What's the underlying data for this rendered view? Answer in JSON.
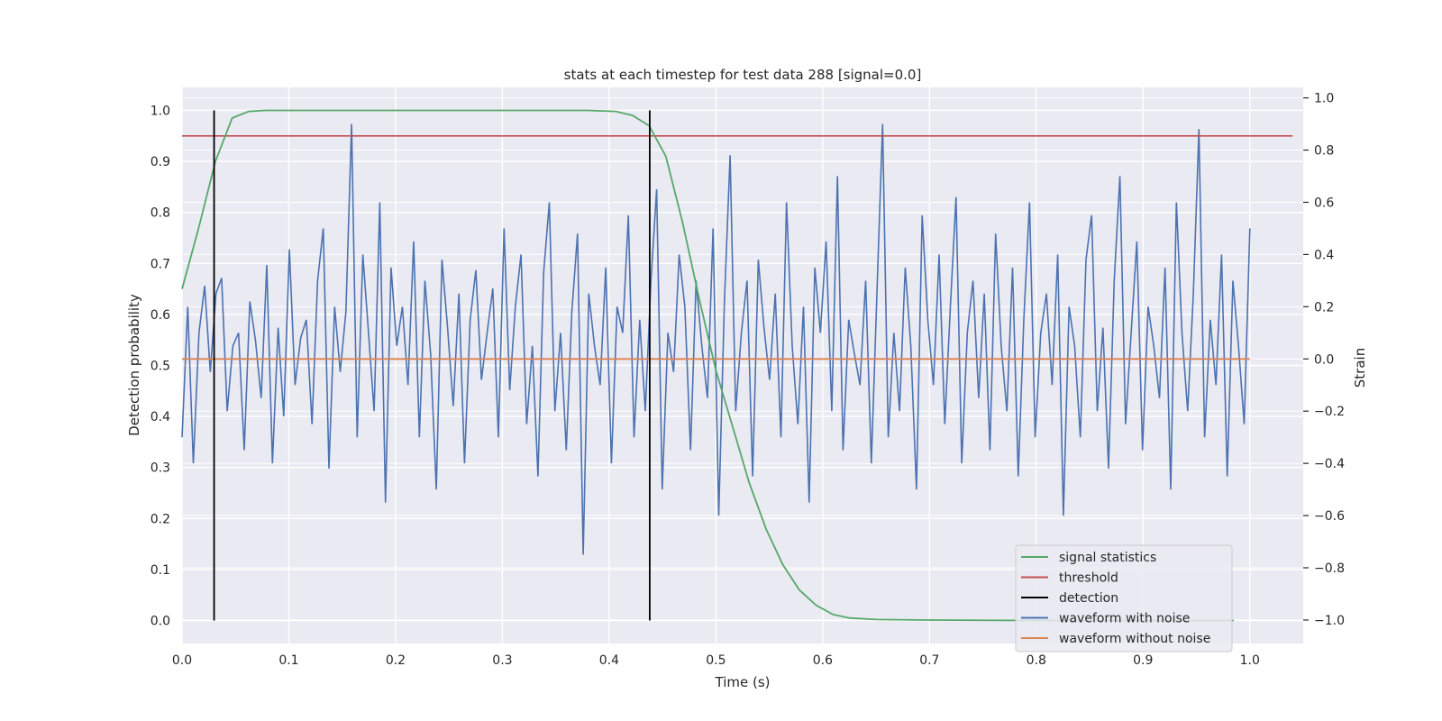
{
  "chart_data": {
    "type": "line",
    "title": "stats at each timestep for test data 288 [signal=0.0]",
    "xlabel": "Time (s)",
    "ylabel": "Detection probability",
    "y2label": "Strain",
    "xlim": [
      0.0,
      1.05
    ],
    "ylim": [
      -0.045,
      1.045
    ],
    "y2lim": [
      -1.09,
      1.04
    ],
    "xticks": [
      0.0,
      0.1,
      0.2,
      0.3,
      0.4,
      0.5,
      0.6,
      0.7,
      0.8,
      0.9,
      1.0
    ],
    "xtick_labels": [
      "0.0",
      "0.1",
      "0.2",
      "0.3",
      "0.4",
      "0.5",
      "0.6",
      "0.7",
      "0.8",
      "0.9",
      "1.0"
    ],
    "yticks": [
      0.0,
      0.1,
      0.2,
      0.3,
      0.4,
      0.5,
      0.6,
      0.7,
      0.8,
      0.9,
      1.0
    ],
    "ytick_labels": [
      "0.0",
      "0.1",
      "0.2",
      "0.3",
      "0.4",
      "0.5",
      "0.6",
      "0.7",
      "0.8",
      "0.9",
      "1.0"
    ],
    "y2ticks": [
      -1.0,
      -0.8,
      -0.6,
      -0.4,
      -0.2,
      0.0,
      0.2,
      0.4,
      0.6,
      0.8,
      1.0
    ],
    "y2tick_labels": [
      "−1.0",
      "−0.8",
      "−0.6",
      "−0.4",
      "−0.2",
      "0.0",
      "0.2",
      "0.4",
      "0.6",
      "0.8",
      "1.0"
    ],
    "grid": true,
    "legend_position": "lower-right",
    "colors": {
      "signal_statistics": "#55a868",
      "threshold": "#c44e52",
      "detection": "#000000",
      "waveform_with_noise": "#4c72b0",
      "waveform_without_noise": "#dd8452",
      "background": "#eaeaf2",
      "grid": "#ffffff"
    },
    "series": [
      {
        "name": "signal statistics",
        "axis": "left",
        "x": [
          0.0,
          0.0156,
          0.0312,
          0.0469,
          0.0625,
          0.0781,
          0.0938,
          0.1094,
          0.125,
          0.2,
          0.3,
          0.38,
          0.4062,
          0.4219,
          0.4375,
          0.4531,
          0.4688,
          0.4844,
          0.5,
          0.5156,
          0.5312,
          0.5469,
          0.5625,
          0.5781,
          0.5938,
          0.6094,
          0.625,
          0.65,
          0.7,
          0.8,
          0.9,
          0.985
        ],
        "y": [
          0.65,
          0.77,
          0.9,
          0.985,
          0.998,
          1.0,
          1.0,
          1.0,
          1.0,
          1.0,
          1.0,
          1.0,
          0.998,
          0.99,
          0.97,
          0.91,
          0.78,
          0.63,
          0.49,
          0.38,
          0.27,
          0.18,
          0.11,
          0.06,
          0.03,
          0.012,
          0.005,
          0.002,
          0.001,
          0.0,
          0.0,
          0.0
        ]
      },
      {
        "name": "threshold",
        "axis": "left",
        "x": [
          0.0,
          1.04
        ],
        "y": [
          0.95,
          0.95
        ]
      },
      {
        "name": "detection",
        "axis": "left",
        "type": "vlines",
        "x": [
          0.03,
          0.438
        ],
        "ymin": 0.0,
        "ymax": 1.0
      },
      {
        "name": "waveform with noise",
        "axis": "right",
        "x_start": 0.0,
        "x_end": 1.0,
        "y": [
          -0.3,
          0.2,
          -0.4,
          0.1,
          0.28,
          -0.05,
          0.25,
          0.31,
          -0.2,
          0.05,
          0.1,
          -0.35,
          0.22,
          0.07,
          -0.15,
          0.36,
          -0.4,
          0.12,
          -0.22,
          0.42,
          -0.1,
          0.08,
          0.15,
          -0.25,
          0.3,
          0.5,
          -0.42,
          0.2,
          -0.05,
          0.18,
          0.9,
          -0.3,
          0.4,
          0.1,
          -0.2,
          0.6,
          -0.55,
          0.35,
          0.05,
          0.2,
          -0.1,
          0.45,
          -0.3,
          0.3,
          0.02,
          -0.5,
          0.38,
          0.12,
          -0.18,
          0.25,
          -0.4,
          0.15,
          0.34,
          -0.08,
          0.1,
          0.27,
          -0.3,
          0.5,
          -0.12,
          0.2,
          0.4,
          -0.25,
          0.05,
          -0.45,
          0.33,
          0.6,
          -0.2,
          0.1,
          -0.35,
          0.18,
          0.48,
          -0.75,
          0.25,
          0.05,
          -0.1,
          0.35,
          -0.4,
          0.2,
          0.1,
          0.55,
          -0.3,
          0.15,
          -0.2,
          0.3,
          0.65,
          -0.5,
          0.1,
          -0.05,
          0.4,
          0.2,
          -0.35,
          0.3,
          0.05,
          -0.15,
          0.5,
          -0.6,
          0.22,
          0.78,
          -0.2,
          0.1,
          0.3,
          -0.45,
          0.38,
          0.12,
          -0.08,
          0.25,
          -0.3,
          0.6,
          0.05,
          -0.25,
          0.2,
          -0.55,
          0.35,
          0.1,
          0.45,
          -0.2,
          0.7,
          -0.35,
          0.15,
          0.02,
          -0.1,
          0.3,
          -0.4,
          0.25,
          0.9,
          -0.3,
          0.1,
          -0.2,
          0.35,
          0.05,
          -0.5,
          0.55,
          0.15,
          -0.1,
          0.4,
          -0.25,
          0.2,
          0.62,
          -0.4,
          0.1,
          0.3,
          -0.15,
          0.25,
          -0.35,
          0.48,
          0.05,
          -0.2,
          0.35,
          -0.45,
          0.15,
          0.6,
          -0.3,
          0.1,
          0.25,
          -0.1,
          0.4,
          -0.6,
          0.2,
          0.05,
          -0.3,
          0.38,
          0.55,
          -0.2,
          0.12,
          -0.42,
          0.3,
          0.7,
          -0.25,
          0.1,
          0.45,
          -0.35,
          0.2,
          0.05,
          -0.15,
          0.35,
          -0.5,
          0.6,
          0.1,
          -0.2,
          0.25,
          0.88,
          -0.3,
          0.15,
          -0.1,
          0.4,
          -0.45,
          0.3,
          0.05,
          -0.25,
          0.5
        ],
        "y_range": [
          -1.0,
          1.0
        ]
      },
      {
        "name": "waveform without noise",
        "axis": "right",
        "x": [
          0.0,
          1.0
        ],
        "y": [
          0.0,
          0.0
        ]
      }
    ]
  },
  "legend": {
    "items": [
      {
        "label": "signal statistics",
        "color": "#55a868"
      },
      {
        "label": "threshold",
        "color": "#c44e52"
      },
      {
        "label": "detection",
        "color": "#000000"
      },
      {
        "label": "waveform with noise",
        "color": "#4c72b0"
      },
      {
        "label": "waveform without noise",
        "color": "#dd8452"
      }
    ]
  }
}
